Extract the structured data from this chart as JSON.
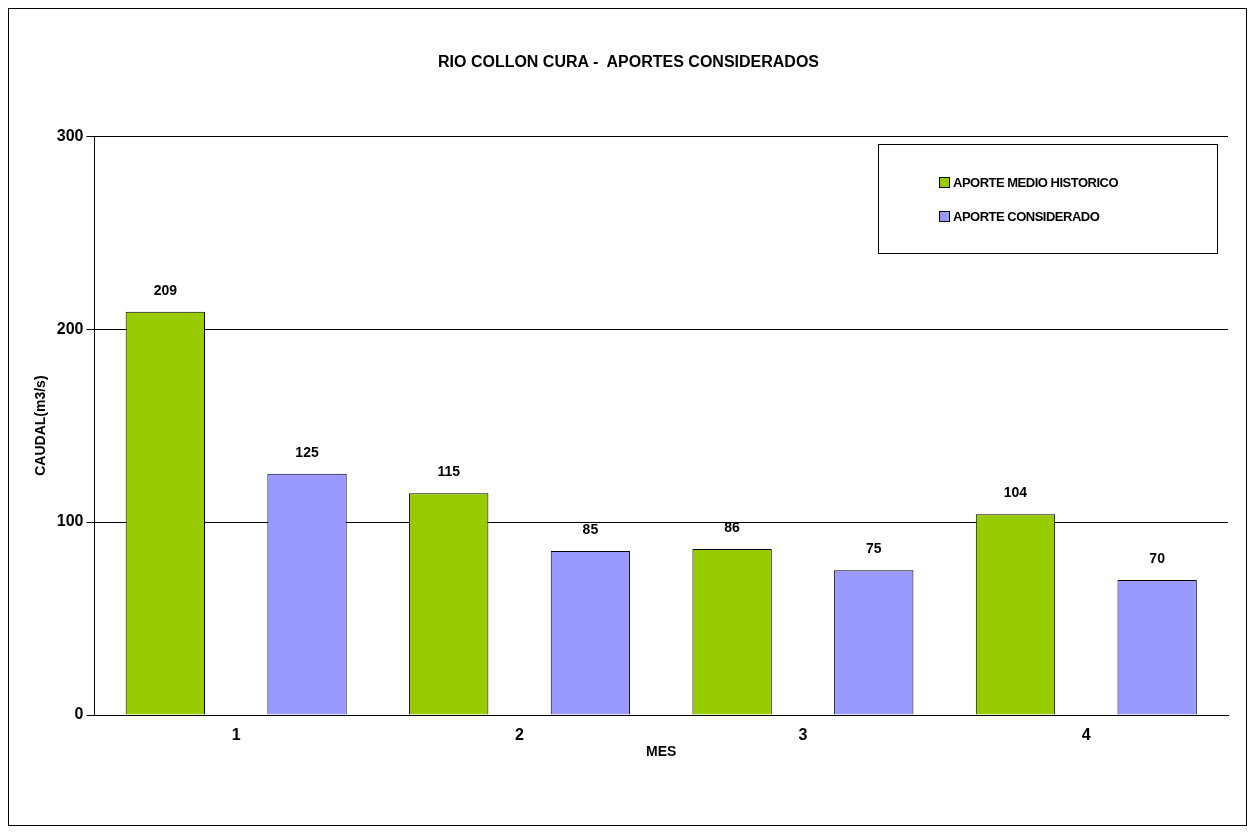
{
  "chart_data": {
    "type": "bar",
    "title": "RIO COLLON CURA -  APORTES CONSIDERADOS",
    "xlabel": "MES",
    "ylabel": "CAUDAL(m3/s)",
    "categories": [
      "1",
      "2",
      "3",
      "4"
    ],
    "series": [
      {
        "name": "APORTE MEDIO HISTORICO",
        "color": "#99cc00",
        "values": [
          209,
          115,
          86,
          104
        ]
      },
      {
        "name": "APORTE CONSIDERADO",
        "color": "#9999ff",
        "values": [
          125,
          85,
          75,
          70
        ]
      }
    ],
    "ylim": [
      0,
      300
    ],
    "yticks": [
      0,
      100,
      200,
      300
    ],
    "grid": "y",
    "legend": "top right",
    "data_labels": true
  }
}
